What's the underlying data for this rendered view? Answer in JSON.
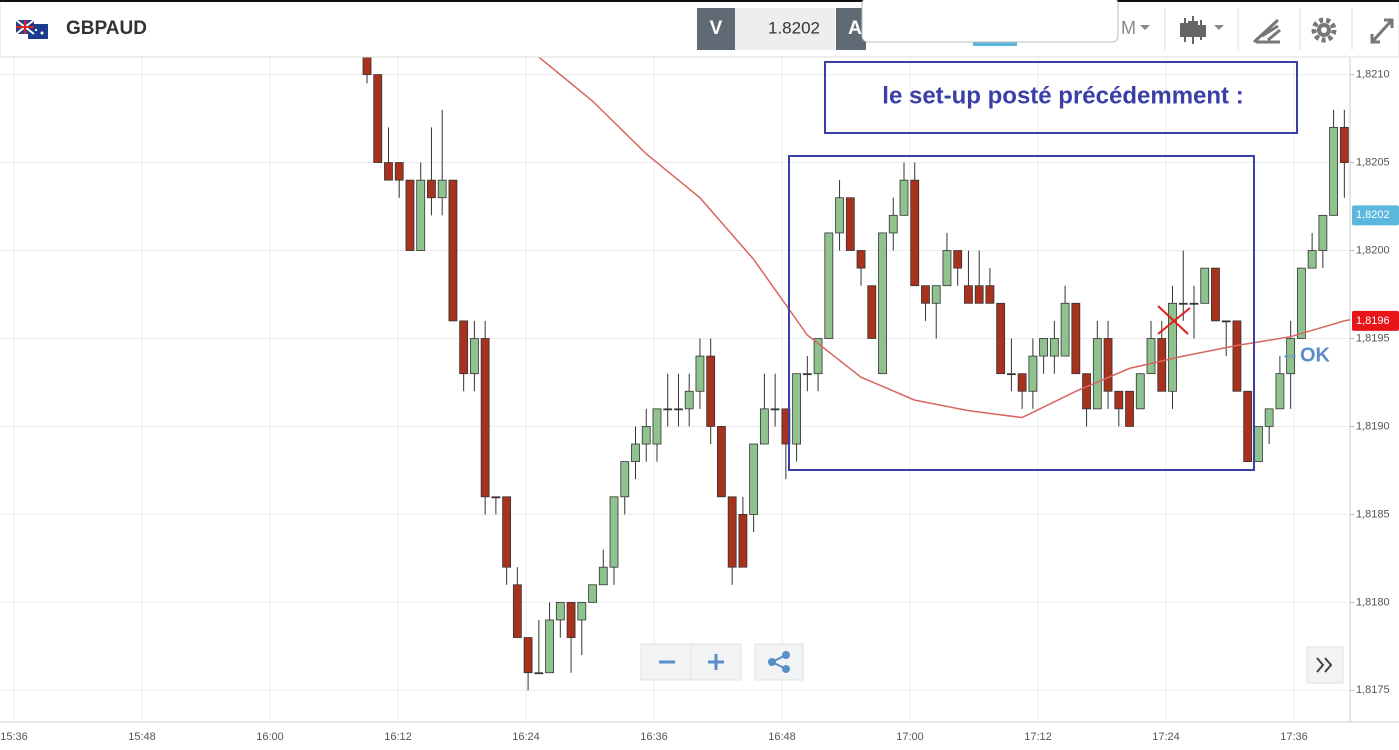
{
  "header": {
    "symbol": "GBPAUD",
    "sell_label": "V",
    "price": "1.8202",
    "buy_label": "A",
    "timeframe": "M"
  },
  "chart_data": {
    "type": "candlestick",
    "open": [
      1.8212,
      1.821,
      1.8205,
      1.8205,
      1.8204,
      1.82,
      1.8204,
      1.8203,
      1.8204,
      1.8196,
      1.8193,
      1.8195,
      1.8186,
      1.8186,
      1.8181,
      1.8178,
      1.8176,
      1.8176,
      1.8179,
      1.818,
      1.8179,
      1.818,
      1.8181,
      1.8182,
      1.8186,
      1.8188,
      1.8189,
      1.8189,
      1.8191,
      1.8191,
      1.8191,
      1.8192,
      1.8194,
      1.819,
      1.8186,
      1.8185,
      1.8185,
      1.8189,
      1.8191,
      1.8191,
      1.8189,
      1.8193,
      1.8193,
      1.8195,
      1.8201,
      1.8203,
      1.82,
      1.8198,
      1.8193,
      1.8201,
      1.8202,
      1.8204,
      1.8198,
      1.8197,
      1.8198,
      1.82,
      1.8198,
      1.8198,
      1.8198,
      1.8197,
      1.8193,
      1.8193,
      1.8192,
      1.8194,
      1.8194,
      1.8194,
      1.8197,
      1.8193,
      1.8191,
      1.8195,
      1.8192,
      1.8192,
      1.8191,
      1.8193,
      1.8195,
      1.8192,
      1.8197,
      1.8197,
      1.8197,
      1.8199,
      1.8196,
      1.8196,
      1.8192,
      1.8188,
      1.819,
      1.8191,
      1.8193,
      1.8195,
      1.8199,
      1.82,
      1.8202,
      1.8207
    ],
    "high": [
      1.8213,
      1.821,
      1.8207,
      1.8205,
      1.8204,
      1.8205,
      1.8207,
      1.8208,
      1.8204,
      1.8196,
      1.8196,
      1.8196,
      1.8186,
      1.8186,
      1.8182,
      1.8178,
      1.8179,
      1.818,
      1.818,
      1.818,
      1.818,
      1.8181,
      1.8183,
      1.8186,
      1.8188,
      1.819,
      1.8191,
      1.8191,
      1.8193,
      1.8193,
      1.8193,
      1.8195,
      1.8195,
      1.819,
      1.8186,
      1.8186,
      1.8189,
      1.8193,
      1.8193,
      1.8191,
      1.8193,
      1.8194,
      1.8195,
      1.8201,
      1.8204,
      1.8203,
      1.82,
      1.8198,
      1.8201,
      1.8203,
      1.8205,
      1.8205,
      1.8198,
      1.8198,
      1.8201,
      1.82,
      1.82,
      1.82,
      1.8199,
      1.8197,
      1.8195,
      1.8193,
      1.8195,
      1.8195,
      1.8196,
      1.8198,
      1.8197,
      1.8193,
      1.8196,
      1.8196,
      1.8192,
      1.8192,
      1.8193,
      1.8196,
      1.8196,
      1.8198,
      1.82,
      1.8198,
      1.8199,
      1.8199,
      1.8196,
      1.8196,
      1.8192,
      1.819,
      1.8191,
      1.8194,
      1.8196,
      1.8199,
      1.8201,
      1.8202,
      1.8208,
      1.8208
    ],
    "low": [
      1.82095,
      1.8205,
      1.8204,
      1.8203,
      1.82,
      1.82,
      1.8202,
      1.8202,
      1.8196,
      1.8192,
      1.8192,
      1.8185,
      1.8185,
      1.8181,
      1.8178,
      1.8175,
      1.8176,
      1.8176,
      1.8178,
      1.8176,
      1.8177,
      1.818,
      1.8181,
      1.8181,
      1.8185,
      1.8187,
      1.8188,
      1.8188,
      1.819,
      1.819,
      1.819,
      1.8191,
      1.8189,
      1.8186,
      1.8181,
      1.8182,
      1.8184,
      1.8189,
      1.819,
      1.8187,
      1.8188,
      1.8192,
      1.8192,
      1.8195,
      1.82,
      1.82,
      1.8198,
      1.8195,
      1.8193,
      1.82,
      1.8202,
      1.8198,
      1.8196,
      1.8195,
      1.8198,
      1.8198,
      1.8197,
      1.8197,
      1.8197,
      1.8193,
      1.8192,
      1.8191,
      1.8191,
      1.8193,
      1.8193,
      1.8194,
      1.8193,
      1.819,
      1.8191,
      1.8191,
      1.819,
      1.819,
      1.8191,
      1.8193,
      1.8192,
      1.8191,
      1.8196,
      1.8195,
      1.8197,
      1.8196,
      1.8194,
      1.8192,
      1.8188,
      1.8188,
      1.8189,
      1.8191,
      1.8191,
      1.8195,
      1.8199,
      1.8199,
      1.8202,
      1.8203
    ],
    "close": [
      1.821,
      1.8205,
      1.8204,
      1.8204,
      1.82,
      1.8204,
      1.8203,
      1.8204,
      1.8196,
      1.8193,
      1.8195,
      1.8186,
      1.8186,
      1.8182,
      1.8178,
      1.8176,
      1.8176,
      1.8179,
      1.818,
      1.8178,
      1.818,
      1.8181,
      1.8182,
      1.8186,
      1.8188,
      1.8189,
      1.819,
      1.8191,
      1.8191,
      1.8191,
      1.8192,
      1.8194,
      1.819,
      1.8186,
      1.8182,
      1.8182,
      1.8189,
      1.8191,
      1.8191,
      1.8189,
      1.8193,
      1.8193,
      1.8195,
      1.8201,
      1.8203,
      1.82,
      1.8199,
      1.8195,
      1.8201,
      1.8202,
      1.8204,
      1.8198,
      1.8197,
      1.8198,
      1.82,
      1.8199,
      1.8197,
      1.8197,
      1.8197,
      1.8193,
      1.8193,
      1.8192,
      1.8194,
      1.8195,
      1.8195,
      1.8197,
      1.8193,
      1.8191,
      1.8195,
      1.8192,
      1.8191,
      1.819,
      1.8193,
      1.8195,
      1.8192,
      1.8197,
      1.8197,
      1.8197,
      1.8199,
      1.8196,
      1.8196,
      1.8192,
      1.8188,
      1.819,
      1.8191,
      1.8193,
      1.8195,
      1.8199,
      1.82,
      1.8202,
      1.8207,
      1.8205
    ],
    "up_color": "#8fc28f",
    "down_color": "#a8321e",
    "moving_average": {
      "color": "#d9665e",
      "values": [
        1.8211,
        1.82085,
        1.82055,
        1.8203,
        1.81995,
        1.81952,
        1.81928,
        1.81915,
        1.81909,
        1.81905,
        1.8192,
        1.81933,
        1.8194,
        1.81946,
        1.81951,
        1.8196,
        1.81966
      ]
    },
    "categories": [
      "15:36",
      "15:48",
      "16:00",
      "16:12",
      "16:24",
      "16:36",
      "16:48",
      "17:00",
      "17:12",
      "17:24",
      "17:36"
    ],
    "ylim": [
      1.81732,
      1.8211
    ],
    "yticks": [
      {
        "value": 1.8175,
        "label": "1,8175"
      },
      {
        "value": 1.818,
        "label": "1,8180"
      },
      {
        "value": 1.8185,
        "label": "1,8185"
      },
      {
        "value": 1.819,
        "label": "1,8190"
      },
      {
        "value": 1.8195,
        "label": "1,8195"
      },
      {
        "value": 1.82,
        "label": "1,8200"
      },
      {
        "value": 1.8205,
        "label": "1,8205"
      },
      {
        "value": 1.821,
        "label": "1,8210"
      }
    ],
    "price_tags": [
      {
        "value": 1.8202,
        "label": "1,8202",
        "color": "#5bb8dc"
      },
      {
        "value": 1.8196,
        "label": "1,8196",
        "color": "#e8141a"
      }
    ],
    "grid": true,
    "annotations": [
      "le set-up posté précédemment :",
      "⇔OK"
    ]
  }
}
